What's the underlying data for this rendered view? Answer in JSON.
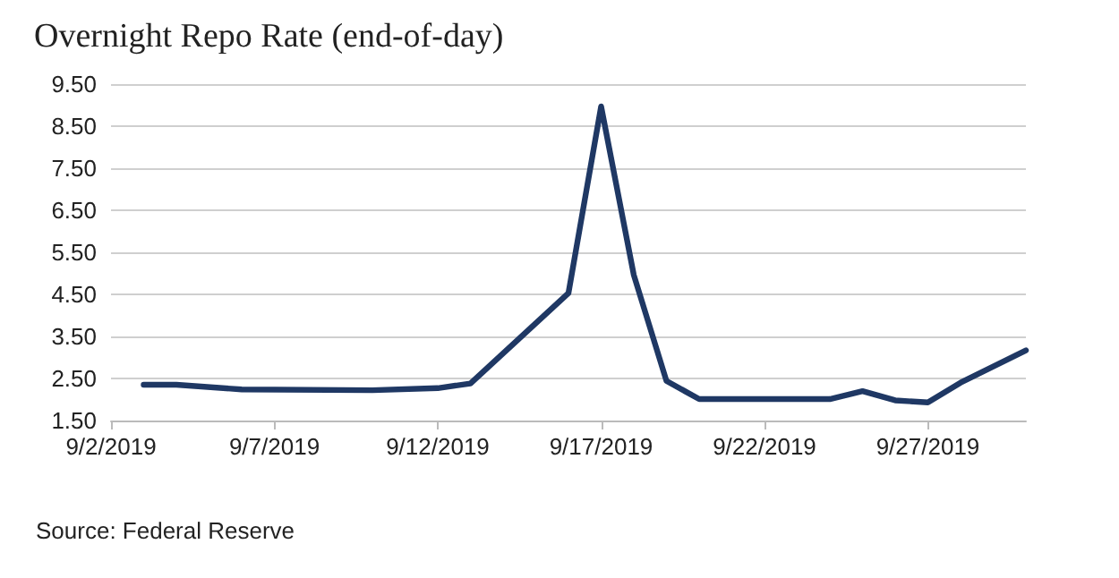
{
  "chart_data": {
    "type": "line",
    "title": "Overnight Repo Rate (end-of-day)",
    "x": [
      "2019-09-03",
      "2019-09-04",
      "2019-09-06",
      "2019-09-10",
      "2019-09-12",
      "2019-09-13",
      "2019-09-16",
      "2019-09-17",
      "2019-09-18",
      "2019-09-19",
      "2019-09-20",
      "2019-09-24",
      "2019-09-25",
      "2019-09-26",
      "2019-09-27",
      "2019-09-28",
      "2019-09-30"
    ],
    "series": [
      {
        "color": "#1f3864",
        "values": [
          2.35,
          2.35,
          2.24,
          2.22,
          2.27,
          2.38,
          4.53,
          8.97,
          4.96,
          2.44,
          2.01,
          2.01,
          2.2,
          1.98,
          1.93,
          2.4,
          3.17
        ]
      }
    ],
    "xlim": [
      "2019-09-02",
      "2019-09-30"
    ],
    "xticks": [
      {
        "value": "2019-09-02",
        "label": "9/2/2019"
      },
      {
        "value": "2019-09-07",
        "label": "9/7/2019"
      },
      {
        "value": "2019-09-12",
        "label": "9/12/2019"
      },
      {
        "value": "2019-09-17",
        "label": "9/17/2019"
      },
      {
        "value": "2019-09-22",
        "label": "9/22/2019"
      },
      {
        "value": "2019-09-27",
        "label": "9/27/2019"
      }
    ],
    "ylim": [
      1.5,
      9.5
    ],
    "yticks": [
      {
        "value": 1.5,
        "label": "1.50"
      },
      {
        "value": 2.5,
        "label": "2.50"
      },
      {
        "value": 3.5,
        "label": "3.50"
      },
      {
        "value": 4.5,
        "label": "4.50"
      },
      {
        "value": 5.5,
        "label": "5.50"
      },
      {
        "value": 6.5,
        "label": "6.50"
      },
      {
        "value": 7.5,
        "label": "7.50"
      },
      {
        "value": 8.5,
        "label": "8.50"
      },
      {
        "value": 9.5,
        "label": "9.50"
      }
    ],
    "grid": "y",
    "marker": "none",
    "line_style": "solid",
    "annotations": [
      "Source: Federal Reserve"
    ]
  }
}
